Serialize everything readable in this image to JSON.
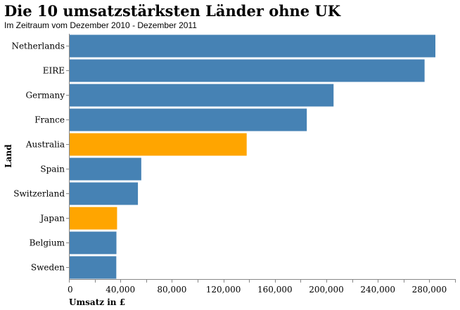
{
  "chart_data": {
    "type": "bar",
    "orientation": "horizontal",
    "title": "Die 10 umsatzstärksten Länder ohne UK",
    "subtitle": "Im Zeitraum vom Dezember 2010 - Dezember 2011",
    "xlabel": "Umsatz in £",
    "ylabel": "Land",
    "xlim": [
      0,
      300000
    ],
    "x_ticks": [
      0,
      40000,
      80000,
      120000,
      160000,
      200000,
      240000,
      280000
    ],
    "x_tick_labels": [
      "0",
      "40,000",
      "80,000",
      "120,000",
      "160,000",
      "200,000",
      "240,000",
      "280,000"
    ],
    "x_minor_tick_step": 20000,
    "categories": [
      "Netherlands",
      "EIRE",
      "Germany",
      "France",
      "Australia",
      "Spain",
      "Switzerland",
      "Japan",
      "Belgium",
      "Sweden"
    ],
    "values": [
      284700,
      276300,
      205600,
      184800,
      138100,
      56200,
      53600,
      37400,
      36900,
      36800
    ],
    "highlighted": [
      "Australia",
      "Japan"
    ],
    "colors": {
      "default": "#4682b4",
      "highlight": "#ffa500"
    },
    "grid": false,
    "legend": "none"
  }
}
